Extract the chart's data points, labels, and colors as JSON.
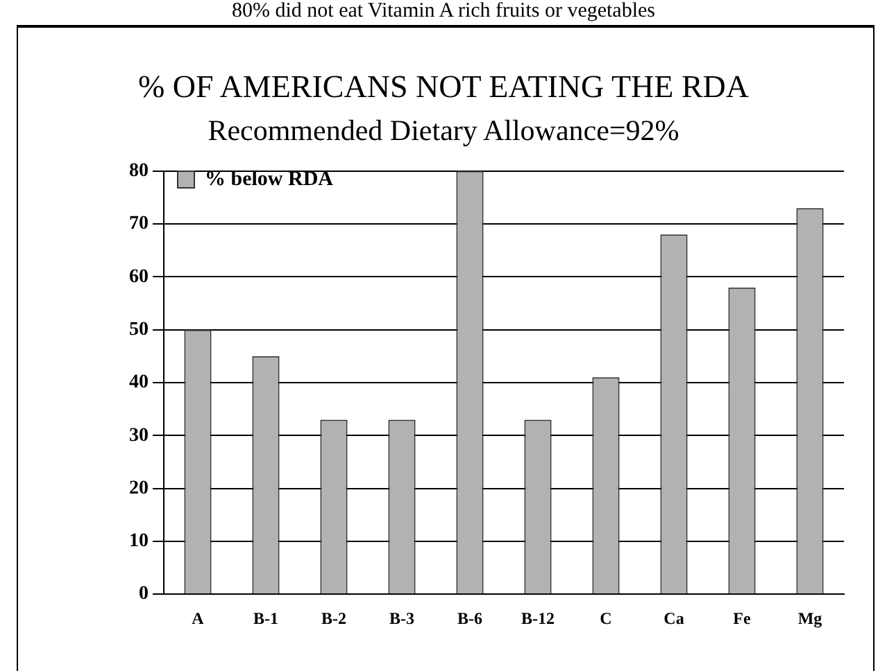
{
  "chart_data": {
    "type": "bar",
    "title": "% OF AMERICANS NOT EATING THE RDA",
    "subtitle": "Recommended Dietary Allowance=92%",
    "annotations": [
      "80% did not eat Vitamin A rich fruits or vegetables"
    ],
    "categories": [
      "A",
      "B-1",
      "B-2",
      "B-3",
      "B-6",
      "B-12",
      "C",
      "Ca",
      "Fe",
      "Mg"
    ],
    "series": [
      {
        "name": "% below RDA",
        "color": "#b2b2b2",
        "values": [
          50,
          45,
          33,
          33,
          80,
          33,
          41,
          68,
          58,
          73
        ]
      }
    ],
    "ylim": [
      0,
      80
    ],
    "yticks": [
      0,
      10,
      20,
      30,
      40,
      50,
      60,
      70,
      80
    ],
    "grid": "y",
    "legend": "top left"
  }
}
